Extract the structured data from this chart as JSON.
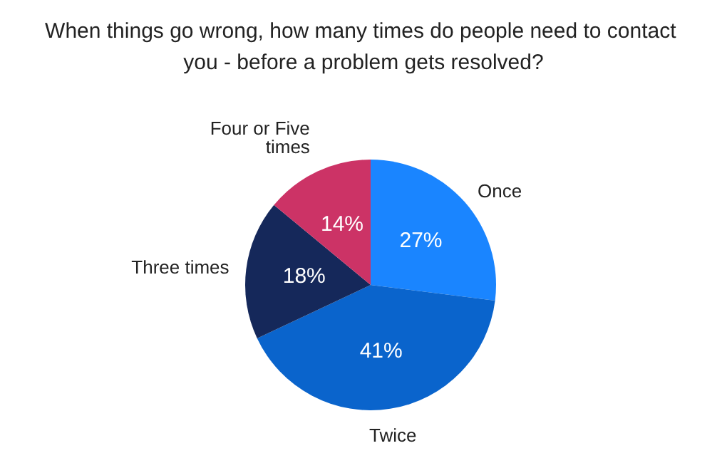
{
  "chart_data": {
    "type": "pie",
    "title": "When things go wrong, how many times do people need to contact you - before a problem gets resolved?",
    "categories": [
      "Once",
      "Twice",
      "Three times",
      "Four or Five times"
    ],
    "values": [
      27,
      41,
      18,
      14
    ],
    "colors": [
      "#1a85ff",
      "#0a64cc",
      "#15285a",
      "#cc3366"
    ],
    "value_labels": [
      "27%",
      "41%",
      "18%",
      "14%"
    ],
    "legend": false
  }
}
